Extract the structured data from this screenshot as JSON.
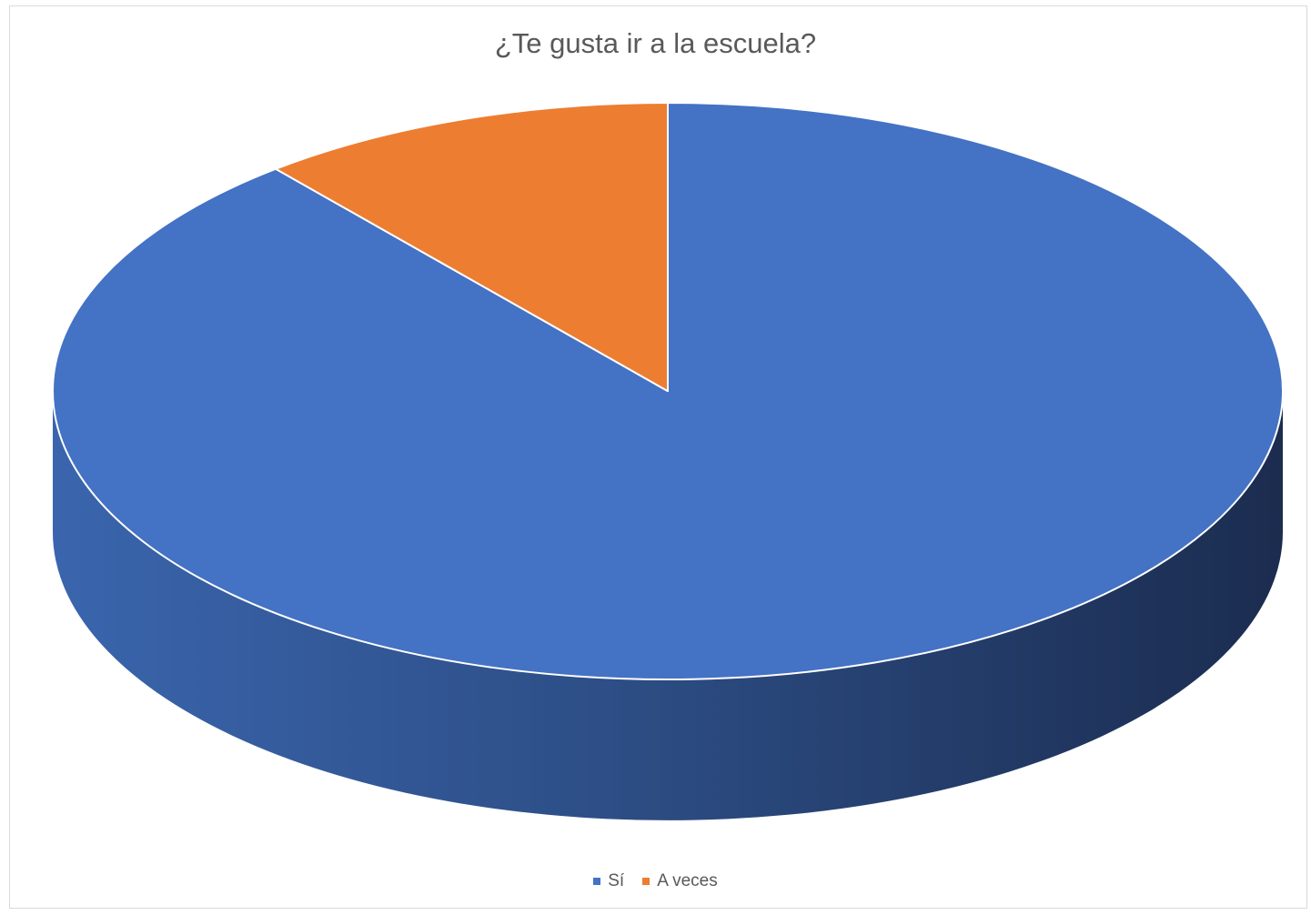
{
  "chart_data": {
    "type": "pie",
    "title": "¿Te gusta ir a la escuela?",
    "categories": [
      "Sí",
      "A veces"
    ],
    "values": [
      89,
      11
    ],
    "colors": [
      "#4472c4",
      "#ed7d31"
    ],
    "legend_position": "bottom",
    "style": "3d"
  }
}
